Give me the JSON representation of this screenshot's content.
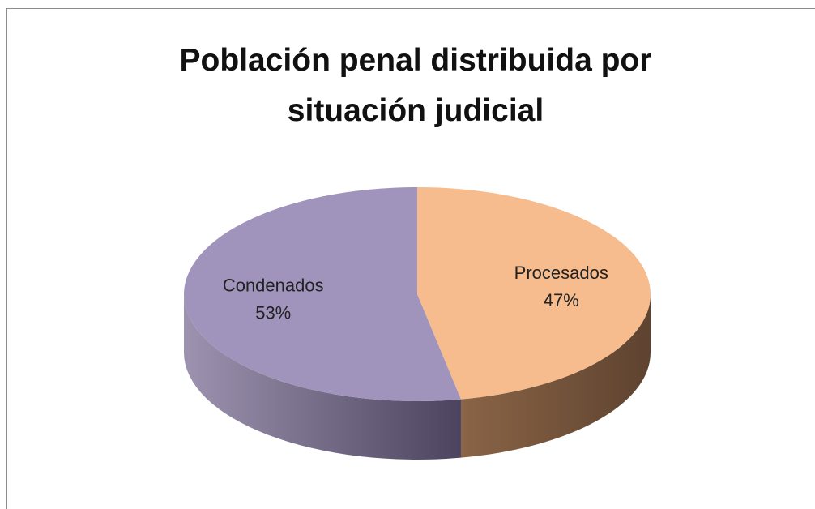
{
  "chart_data": {
    "type": "pie",
    "title": "Población penal distribuida por situación judicial",
    "categories": [
      "Procesados",
      "Condenados"
    ],
    "values": [
      47,
      53
    ],
    "value_labels": [
      "47%",
      "53%"
    ],
    "colors": [
      "#f6bc8e",
      "#a194bc"
    ]
  }
}
